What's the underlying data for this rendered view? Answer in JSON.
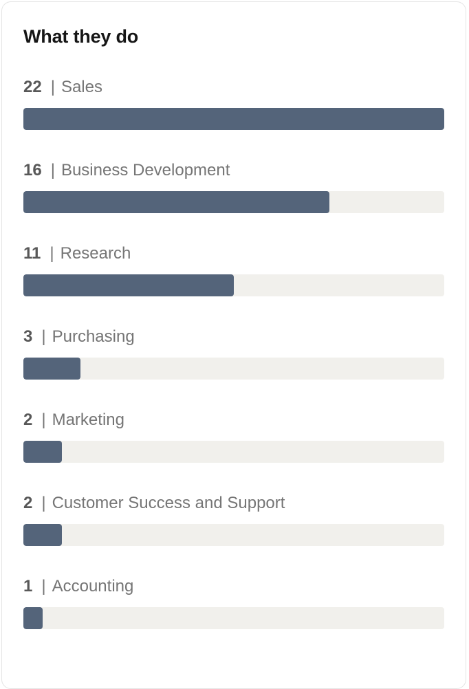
{
  "card": {
    "title": "What they do"
  },
  "colors": {
    "bar_fill": "#54647a",
    "bar_track": "#f1f0ec",
    "title": "#161616",
    "count": "#585858",
    "label": "#757575",
    "card_border": "#e4e4e4",
    "background": "#ffffff"
  },
  "chart_data": {
    "type": "bar",
    "orientation": "horizontal",
    "title": "What they do",
    "separator": "|",
    "categories": [
      "Sales",
      "Business Development",
      "Research",
      "Purchasing",
      "Marketing",
      "Customer Success and Support",
      "Accounting"
    ],
    "values": [
      22,
      16,
      11,
      3,
      2,
      2,
      1
    ],
    "max_value": 22,
    "value_label_format": "count | category",
    "grid": false,
    "legend": false
  }
}
